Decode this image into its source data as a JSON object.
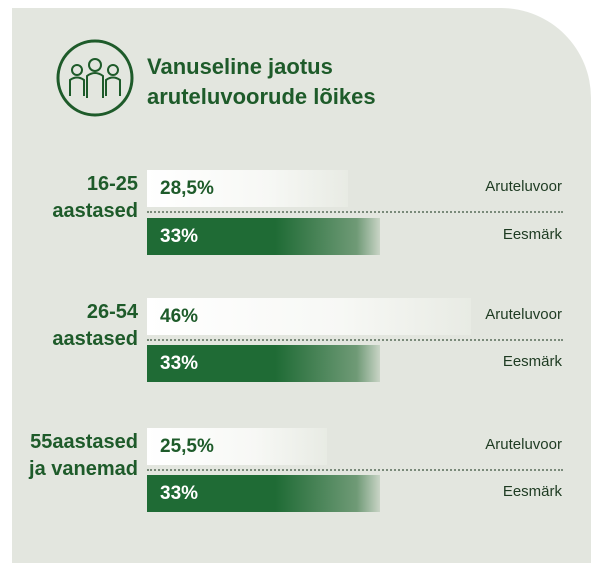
{
  "chart_data": {
    "type": "bar",
    "orientation": "horizontal",
    "title": "Vanuseline jaotus aruteluvoorude lõikes",
    "categories": [
      "16-25 aastased",
      "26-54 aastased",
      "55aastased ja vanemad"
    ],
    "series": [
      {
        "name": "Aruteluvoor",
        "color": "#ffffff",
        "values": [
          28.5,
          46,
          25.5
        ],
        "value_labels": [
          "28,5%",
          "46%",
          "25,5%"
        ]
      },
      {
        "name": "Eesmärk",
        "color": "#1f6b35",
        "values": [
          33,
          33,
          33
        ],
        "value_labels": [
          "33%",
          "33%",
          "33%"
        ]
      }
    ]
  }
}
